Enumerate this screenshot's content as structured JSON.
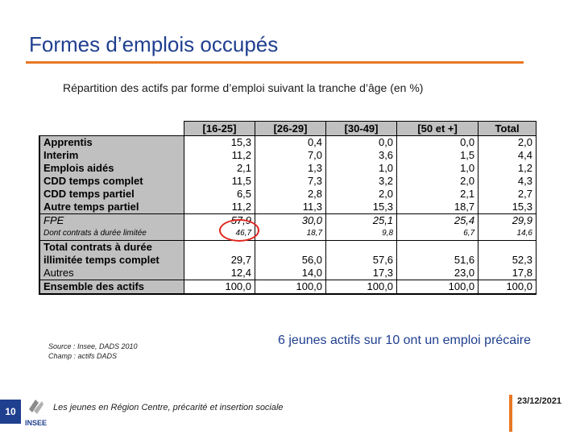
{
  "title": "Formes d’emplois occupés",
  "subtitle": "Répartition des actifs par forme d’emploi suivant la tranche d’âge (en %)",
  "table": {
    "headers": [
      "[16-25]",
      "[26-29]",
      "[30-49]",
      "[50 et +]",
      "Total"
    ],
    "rows": [
      {
        "label": "Apprentis",
        "values": [
          "15,3",
          "0,4",
          "0,0",
          "0,0",
          "2,0"
        ]
      },
      {
        "label": "Interim",
        "values": [
          "11,2",
          "7,0",
          "3,6",
          "1,5",
          "4,4"
        ]
      },
      {
        "label": "Emplois aidés",
        "values": [
          "2,1",
          "1,3",
          "1,0",
          "1,0",
          "1,2"
        ]
      },
      {
        "label": "CDD temps complet",
        "values": [
          "11,5",
          "7,3",
          "3,2",
          "2,0",
          "4,3"
        ]
      },
      {
        "label": "CDD temps partiel",
        "values": [
          "6,5",
          "2,8",
          "2,0",
          "2,1",
          "2,7"
        ]
      },
      {
        "label": "Autre temps partiel",
        "values": [
          "11,2",
          "11,3",
          "15,3",
          "18,7",
          "15,3"
        ]
      },
      {
        "label": "FPE",
        "values": [
          "57,9",
          "30,0",
          "25,1",
          "25,4",
          "29,9"
        ]
      },
      {
        "label": "Dont contrats à durée limitée",
        "values": [
          "46,7",
          "18,7",
          "9,8",
          "6,7",
          "14,6"
        ]
      },
      {
        "label": "Total contrats à durée illimitée temps complet",
        "values": [
          "29,7",
          "56,0",
          "57,6",
          "51,6",
          "52,3"
        ]
      },
      {
        "label": "Autres",
        "values": [
          "12,4",
          "14,0",
          "17,3",
          "23,0",
          "17,8"
        ]
      },
      {
        "label": "Ensemble des actifs",
        "values": [
          "100,0",
          "100,0",
          "100,0",
          "100,0",
          "100,0"
        ]
      }
    ]
  },
  "source": {
    "line1": "Source : Insee, DADS 2010",
    "line2": "Champ : actifs DADS"
  },
  "note": "6 jeunes actifs sur 10 ont un emploi précaire",
  "footer": {
    "page_number": "10",
    "text": "Les jeunes en Région Centre, précarité et insertion sociale",
    "date": "23/12/2021",
    "logo_text": "INSEE"
  },
  "colors": {
    "title": "#1f3f8f",
    "accent": "#e87722",
    "highlight_circle": "#e0281e",
    "label_bg": "#c0c0c0"
  }
}
